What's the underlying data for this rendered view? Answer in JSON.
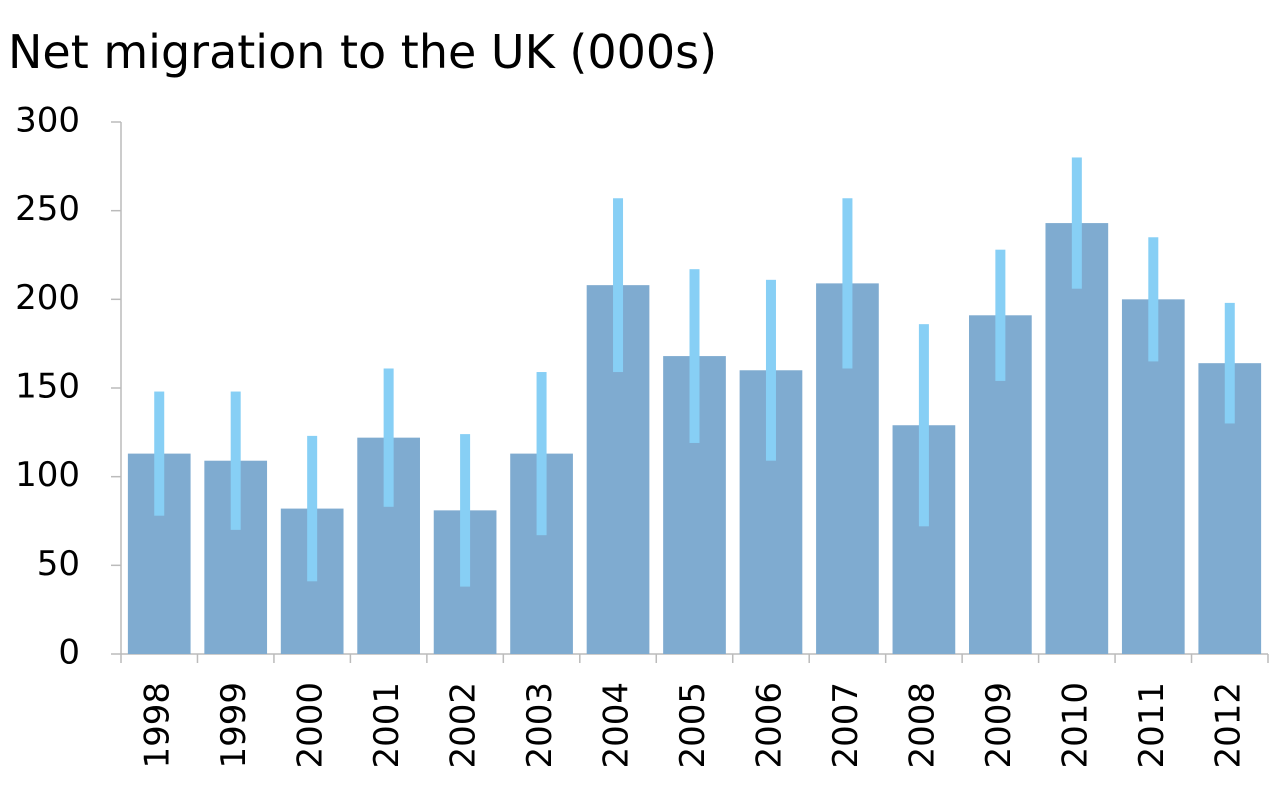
{
  "chart_data": {
    "type": "bar",
    "title": "Net migration to the UK (000s)",
    "categories": [
      "1998",
      "1999",
      "2000",
      "2001",
      "2002",
      "2003",
      "2004",
      "2005",
      "2006",
      "2007",
      "2008",
      "2009",
      "2010",
      "2011",
      "2012"
    ],
    "values": [
      113,
      109,
      82,
      122,
      81,
      113,
      208,
      168,
      160,
      209,
      129,
      191,
      243,
      200,
      164
    ],
    "errors": [
      35,
      39,
      41,
      39,
      43,
      46,
      49,
      49,
      51,
      48,
      57,
      37,
      37,
      35,
      34
    ],
    "color": "#7fabd0",
    "error_color": "#87cff5",
    "ylim": [
      0,
      300
    ],
    "yticks": [
      0,
      50,
      100,
      150,
      200,
      250,
      300
    ],
    "grid": false
  }
}
